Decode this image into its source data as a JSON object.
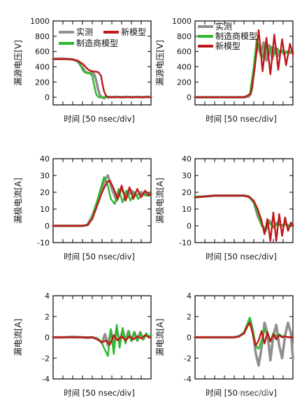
{
  "colors": {
    "measured": "#909090",
    "new_model": "#c01818",
    "manufacturer": "#2cb82c"
  },
  "chart_data": [
    {
      "type": "line",
      "ylabel": "漏源电压[V]",
      "xlabel": "时间 [50 nsec/div]",
      "ylim": [
        -100,
        1000
      ],
      "yticks": [
        0,
        200,
        400,
        600,
        800,
        1000
      ],
      "xlim": [
        0,
        10
      ],
      "legend": [
        "实测",
        "新模型",
        "制造商模型"
      ],
      "legend_position": "top",
      "series": [
        {
          "name": "实测",
          "color_key": "measured",
          "x": [
            0,
            0.5,
            1,
            1.5,
            2,
            2.5,
            3,
            3.3,
            3.5,
            3.8,
            4,
            4.2,
            4.4,
            4.6,
            4.8,
            5,
            5.2,
            5.4,
            5.6,
            5.8,
            6,
            6.5,
            7,
            7.5,
            8,
            8.5,
            9,
            9.5,
            10
          ],
          "y": [
            505,
            505,
            505,
            500,
            495,
            470,
            390,
            330,
            320,
            320,
            320,
            300,
            220,
            100,
            20,
            0,
            -15,
            10,
            -5,
            5,
            0,
            5,
            0,
            5,
            0,
            5,
            0,
            5,
            5
          ]
        },
        {
          "name": "新模型",
          "color_key": "new_model",
          "x": [
            0,
            0.5,
            1,
            1.5,
            2,
            2.5,
            3,
            3.3,
            3.6,
            4,
            4.3,
            4.6,
            4.9,
            5,
            5.2,
            5.4,
            5.6,
            5.8,
            6,
            6.5,
            7,
            7.5,
            8,
            8.5,
            9,
            9.5,
            10
          ],
          "y": [
            500,
            500,
            500,
            500,
            495,
            480,
            440,
            400,
            360,
            340,
            335,
            330,
            280,
            200,
            80,
            20,
            5,
            0,
            0,
            0,
            0,
            0,
            0,
            0,
            0,
            0,
            0
          ]
        },
        {
          "name": "制造商模型",
          "color_key": "manufacturer",
          "x": [
            0,
            0.5,
            1,
            1.5,
            2,
            2.5,
            2.8,
            3,
            3.2,
            3.5,
            3.8,
            4,
            4.2,
            4.4,
            4.6,
            4.8,
            5,
            5.5,
            6,
            7,
            8,
            9,
            10
          ],
          "y": [
            500,
            500,
            500,
            500,
            495,
            480,
            420,
            360,
            330,
            320,
            310,
            280,
            150,
            40,
            5,
            -5,
            0,
            0,
            0,
            0,
            0,
            0,
            0
          ]
        }
      ]
    },
    {
      "type": "line",
      "ylabel": "漏源电压[V]",
      "xlabel": "时间 [50 nsec/div]",
      "ylim": [
        -100,
        1000
      ],
      "yticks": [
        0,
        200,
        400,
        600,
        800,
        1000
      ],
      "xlim": [
        0,
        10
      ],
      "legend": [
        "实测",
        "制造商模型",
        "新模型"
      ],
      "legend_position": "top-left",
      "series": [
        {
          "name": "实测",
          "color_key": "measured",
          "x": [
            0,
            1,
            2,
            3,
            4,
            5,
            5.5,
            5.8,
            6.1,
            6.4,
            6.7,
            7,
            7.3,
            7.6,
            7.9,
            8.2,
            8.5,
            8.8,
            9.1,
            9.4,
            9.7,
            10
          ],
          "y": [
            0,
            0,
            0,
            0,
            0,
            0,
            10,
            100,
            450,
            700,
            560,
            720,
            480,
            680,
            500,
            650,
            540,
            620,
            560,
            600,
            580,
            590
          ]
        },
        {
          "name": "制造商模型",
          "color_key": "manufacturer",
          "x": [
            0,
            1,
            2,
            3,
            4,
            5,
            5.6,
            6,
            6.3,
            6.6,
            6.9,
            7.2,
            7.5,
            7.8,
            8.1,
            8.4,
            8.7,
            9,
            9.3,
            9.6,
            10
          ],
          "y": [
            0,
            0,
            0,
            0,
            0,
            0,
            40,
            400,
            760,
            620,
            520,
            700,
            540,
            660,
            560,
            640,
            580,
            610,
            590,
            600,
            600
          ]
        },
        {
          "name": "新模型",
          "color_key": "new_model",
          "x": [
            0,
            1,
            2,
            3,
            4,
            5,
            5.7,
            6.1,
            6.5,
            6.9,
            7.3,
            7.7,
            8.1,
            8.5,
            8.9,
            9.3,
            9.7,
            10
          ],
          "y": [
            0,
            0,
            0,
            0,
            0,
            0,
            40,
            380,
            880,
            340,
            780,
            300,
            820,
            360,
            760,
            420,
            700,
            560
          ]
        }
      ]
    },
    {
      "type": "line",
      "ylabel": "漏极电流[A]",
      "xlabel": "时间 [50 nsec/div]",
      "ylim": [
        -10,
        40
      ],
      "yticks": [
        -10,
        0,
        10,
        20,
        30,
        40
      ],
      "xlim": [
        0,
        10
      ],
      "series": [
        {
          "name": "实测",
          "color_key": "measured",
          "x": [
            0,
            1,
            2,
            3,
            3.5,
            4,
            4.5,
            5,
            5.3,
            5.6,
            6,
            6.5,
            7,
            7.5,
            8,
            8.5,
            9,
            9.5,
            10
          ],
          "y": [
            0,
            0,
            0,
            0,
            0.5,
            6,
            14,
            22,
            28,
            30,
            22,
            15,
            22,
            17,
            21,
            18,
            20,
            19,
            19
          ]
        },
        {
          "name": "新模型",
          "color_key": "new_model",
          "x": [
            0,
            1,
            2,
            3,
            3.5,
            4,
            4.5,
            5,
            5.5,
            5.8,
            6.2,
            6.6,
            7,
            7.4,
            7.8,
            8.2,
            8.6,
            9,
            9.4,
            9.8,
            10
          ],
          "y": [
            0,
            0,
            0,
            0,
            0.5,
            4,
            12,
            20,
            26,
            27,
            22,
            16,
            24,
            15,
            23,
            16,
            22,
            17,
            21,
            18,
            19
          ]
        },
        {
          "name": "制造商模型",
          "color_key": "manufacturer",
          "x": [
            0,
            1,
            2,
            3,
            3.6,
            4,
            4.5,
            5,
            5.2,
            5.5,
            5.9,
            6.3,
            6.7,
            7.1,
            7.5,
            7.9,
            8.3,
            8.7,
            9.1,
            9.5,
            10
          ],
          "y": [
            0,
            0,
            0,
            0,
            0.5,
            5,
            15,
            25,
            29,
            26,
            16,
            13,
            22,
            14,
            21,
            15,
            20,
            16,
            19,
            18,
            18
          ]
        }
      ]
    },
    {
      "type": "line",
      "ylabel": "漏极电流[A]",
      "xlabel": "时间 [50 nsec/div]",
      "ylim": [
        -10,
        40
      ],
      "yticks": [
        -10,
        0,
        10,
        20,
        30,
        40
      ],
      "xlim": [
        0,
        10
      ],
      "series": [
        {
          "name": "实测",
          "color_key": "measured",
          "x": [
            0,
            1,
            2,
            3,
            4,
            5,
            5.5,
            6,
            6.4,
            6.8,
            7.2,
            7.6,
            8,
            8.4,
            8.8,
            9.2,
            9.6,
            10
          ],
          "y": [
            17,
            17.5,
            18,
            18,
            18,
            18,
            17.5,
            14,
            6,
            1,
            -3,
            3,
            -1,
            2,
            0,
            1,
            0,
            0
          ]
        },
        {
          "name": "制造商模型",
          "color_key": "manufacturer",
          "x": [
            0,
            1,
            2,
            3,
            4,
            5,
            5.5,
            6,
            6.4,
            6.8,
            7.2,
            7.6,
            8,
            8.4,
            8.8,
            9.2,
            9.6,
            10
          ],
          "y": [
            17.5,
            17.5,
            18,
            18,
            18,
            18,
            17.5,
            14,
            8,
            0,
            -2,
            2,
            -1,
            1,
            0,
            1,
            0,
            0
          ]
        },
        {
          "name": "新模型",
          "color_key": "new_model",
          "x": [
            0,
            1,
            2,
            3,
            4,
            5,
            5.6,
            6,
            6.4,
            6.8,
            7.1,
            7.4,
            7.7,
            8,
            8.3,
            8.6,
            8.9,
            9.2,
            9.5,
            9.8,
            10
          ],
          "y": [
            17,
            17.5,
            18,
            18,
            18,
            18,
            17,
            15,
            10,
            3,
            -5,
            4,
            -9,
            8,
            -9,
            7,
            -6,
            5,
            -3,
            2,
            0
          ]
        }
      ]
    },
    {
      "type": "line",
      "ylabel": "漏电流[A]",
      "xlabel": "时间 [50 nsec/div]",
      "ylim": [
        -4,
        4
      ],
      "yticks": [
        -4,
        -2,
        0,
        2,
        4
      ],
      "xlim": [
        0,
        10
      ],
      "series": [
        {
          "name": "实测",
          "color_key": "measured",
          "x": [
            0,
            1,
            2,
            3,
            3.5,
            4,
            4.5,
            5,
            5.3,
            5.6,
            5.9,
            6.2,
            6.5,
            6.8,
            7.1,
            7.4,
            7.7,
            8,
            8.3,
            8.6,
            8.9,
            9.2,
            9.5,
            9.8,
            10
          ],
          "y": [
            0,
            0,
            0.05,
            0,
            -0.05,
            0,
            -0.1,
            -0.5,
            0.3,
            -0.8,
            0.6,
            -0.6,
            0.8,
            -0.5,
            0.7,
            -0.4,
            0.6,
            -0.3,
            0.5,
            -0.3,
            0.5,
            -0.2,
            0.3,
            0,
            0.2
          ]
        },
        {
          "name": "制造商模型",
          "color_key": "manufacturer",
          "x": [
            0,
            1,
            2,
            3,
            4,
            4.5,
            5,
            5.3,
            5.6,
            5.9,
            6.2,
            6.5,
            6.8,
            7.1,
            7.4,
            7.7,
            8,
            8.3,
            8.6,
            8.9,
            9.2,
            9.5,
            9.8,
            10
          ],
          "y": [
            0,
            0,
            0,
            0,
            0,
            -0.1,
            -0.6,
            -1.2,
            -1.8,
            0.8,
            -1.6,
            1.2,
            -1.0,
            0.9,
            -0.6,
            0.6,
            -0.4,
            0.5,
            -0.3,
            0.4,
            -0.2,
            0.4,
            0,
            0.3
          ]
        },
        {
          "name": "新模型",
          "color_key": "new_model",
          "x": [
            0,
            1,
            2,
            3,
            4,
            4.5,
            5,
            5.4,
            5.8,
            6.2,
            6.6,
            7,
            7.4,
            7.8,
            8.2,
            8.6,
            9,
            9.4,
            9.8,
            10
          ],
          "y": [
            0,
            0,
            0,
            0,
            0,
            -0.2,
            -0.5,
            -0.3,
            -0.7,
            0.2,
            -0.3,
            0.1,
            -0.3,
            0.1,
            -0.2,
            0.1,
            -0.1,
            0.2,
            0,
            0
          ]
        }
      ]
    },
    {
      "type": "line",
      "ylabel": "漏电流[A]",
      "xlabel": "时间 [50 nsec/div]",
      "ylim": [
        -4,
        4
      ],
      "yticks": [
        -4,
        -2,
        0,
        2,
        4
      ],
      "xlim": [
        0,
        10
      ],
      "series": [
        {
          "name": "实测",
          "color_key": "measured",
          "x": [
            0,
            1,
            2,
            3,
            4,
            4.5,
            5,
            5.3,
            5.6,
            5.9,
            6.2,
            6.5,
            6.8,
            7.1,
            7.4,
            7.7,
            8,
            8.3,
            8.6,
            8.9,
            9.2,
            9.5,
            9.8,
            10
          ],
          "y": [
            0,
            0,
            0,
            0,
            0,
            0.1,
            0.4,
            1.0,
            1.6,
            0.6,
            -1.5,
            -2.7,
            -1.0,
            1.4,
            0.4,
            -2.2,
            0.2,
            1.2,
            -0.8,
            -2.0,
            0.2,
            1.4,
            0.4,
            -2.0
          ]
        },
        {
          "name": "制造商模型",
          "color_key": "manufacturer",
          "x": [
            0,
            1,
            2,
            3,
            4,
            4.5,
            5,
            5.3,
            5.6,
            5.9,
            6.2,
            6.5,
            6.8,
            7.1,
            7.4,
            7.7,
            8,
            8.3,
            8.6,
            8.9,
            9.2,
            9.5,
            9.8,
            10
          ],
          "y": [
            0,
            0,
            0,
            0,
            0,
            0.1,
            0.5,
            1.2,
            1.9,
            0.8,
            -0.8,
            -1.1,
            -0.3,
            0.8,
            0.2,
            -0.4,
            0.4,
            0.1,
            0.3,
            0.1,
            0.1,
            0,
            0.1,
            0
          ]
        },
        {
          "name": "新模型",
          "color_key": "new_model",
          "x": [
            0,
            1,
            2,
            3,
            4,
            4.5,
            5,
            5.3,
            5.6,
            5.9,
            6.2,
            6.5,
            6.8,
            7.1,
            7.4,
            7.7,
            8,
            8.3,
            8.6,
            8.9,
            9.2,
            9.5,
            9.8,
            10
          ],
          "y": [
            0,
            0,
            0,
            0,
            0,
            0.1,
            0.4,
            1.0,
            1.4,
            0.3,
            -0.8,
            -0.3,
            0.6,
            -0.6,
            0.5,
            -0.4,
            0.3,
            -0.2,
            0.2,
            0,
            0.1,
            0,
            0,
            0
          ]
        }
      ]
    }
  ],
  "watermark": "电子发烧友"
}
